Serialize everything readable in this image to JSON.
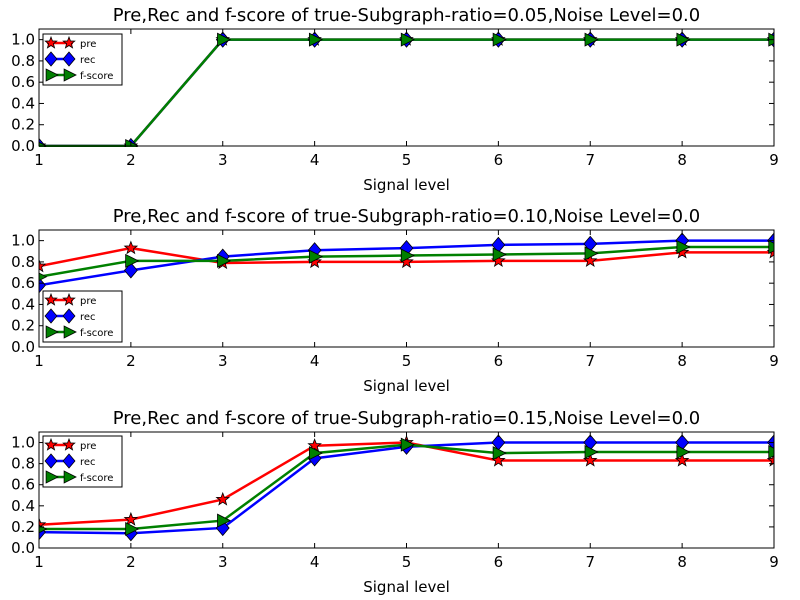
{
  "chart_data": [
    {
      "type": "line",
      "title": "Pre,Rec and f-score of true-Subgraph-ratio=0.05,Noise Level=0.0",
      "xlabel": "Signal level",
      "ylabel": "",
      "xlim": [
        1,
        9
      ],
      "ylim": [
        0,
        1.1
      ],
      "grid": false,
      "legend_position": "top-left",
      "x": [
        1,
        2,
        3,
        4,
        5,
        6,
        7,
        8,
        9
      ],
      "x_ticks": [
        "1",
        "2",
        "3",
        "4",
        "5",
        "6",
        "7",
        "8",
        "9"
      ],
      "y_ticks": [
        "0.0",
        "0.2",
        "0.4",
        "0.6",
        "0.8",
        "1.0"
      ],
      "series": [
        {
          "name": "pre",
          "color": "#ff0000",
          "marker": "star",
          "values": [
            0.0,
            0.0,
            1.0,
            1.0,
            1.0,
            1.0,
            1.0,
            1.0,
            1.0
          ]
        },
        {
          "name": "rec",
          "color": "#0000ff",
          "marker": "diamond",
          "values": [
            0.0,
            0.0,
            1.0,
            1.0,
            1.0,
            1.0,
            1.0,
            1.0,
            1.0
          ]
        },
        {
          "name": "f-score",
          "color": "#008000",
          "marker": "triangle-right",
          "values": [
            0.0,
            0.0,
            1.0,
            1.0,
            1.0,
            1.0,
            1.0,
            1.0,
            1.0
          ]
        }
      ]
    },
    {
      "type": "line",
      "title": "Pre,Rec and f-score of true-Subgraph-ratio=0.10,Noise Level=0.0",
      "xlabel": "Signal level",
      "ylabel": "",
      "xlim": [
        1,
        9
      ],
      "ylim": [
        0,
        1.1
      ],
      "grid": false,
      "legend_position": "bottom-left",
      "x": [
        1,
        2,
        3,
        4,
        5,
        6,
        7,
        8,
        9
      ],
      "x_ticks": [
        "1",
        "2",
        "3",
        "4",
        "5",
        "6",
        "7",
        "8",
        "9"
      ],
      "y_ticks": [
        "0.0",
        "0.2",
        "0.4",
        "0.6",
        "0.8",
        "1.0"
      ],
      "series": [
        {
          "name": "pre",
          "color": "#ff0000",
          "marker": "star",
          "values": [
            0.76,
            0.93,
            0.79,
            0.8,
            0.8,
            0.81,
            0.81,
            0.89,
            0.89
          ]
        },
        {
          "name": "rec",
          "color": "#0000ff",
          "marker": "diamond",
          "values": [
            0.58,
            0.72,
            0.85,
            0.91,
            0.93,
            0.96,
            0.97,
            1.0,
            1.0
          ]
        },
        {
          "name": "f-score",
          "color": "#008000",
          "marker": "triangle-right",
          "values": [
            0.66,
            0.81,
            0.81,
            0.85,
            0.86,
            0.87,
            0.88,
            0.94,
            0.94
          ]
        }
      ]
    },
    {
      "type": "line",
      "title": "Pre,Rec and f-score of true-Subgraph-ratio=0.15,Noise Level=0.0",
      "xlabel": "Signal level",
      "ylabel": "",
      "xlim": [
        1,
        9
      ],
      "ylim": [
        0,
        1.1
      ],
      "grid": false,
      "legend_position": "top-left",
      "x": [
        1,
        2,
        3,
        4,
        5,
        6,
        7,
        8,
        9
      ],
      "x_ticks": [
        "1",
        "2",
        "3",
        "4",
        "5",
        "6",
        "7",
        "8",
        "9"
      ],
      "y_ticks": [
        "0.0",
        "0.2",
        "0.4",
        "0.6",
        "0.8",
        "1.0"
      ],
      "series": [
        {
          "name": "pre",
          "color": "#ff0000",
          "marker": "star",
          "values": [
            0.22,
            0.27,
            0.46,
            0.97,
            1.0,
            0.83,
            0.83,
            0.83,
            0.83
          ]
        },
        {
          "name": "rec",
          "color": "#0000ff",
          "marker": "diamond",
          "values": [
            0.15,
            0.14,
            0.19,
            0.85,
            0.96,
            1.0,
            1.0,
            1.0,
            1.0
          ]
        },
        {
          "name": "f-score",
          "color": "#008000",
          "marker": "triangle-right",
          "values": [
            0.18,
            0.18,
            0.26,
            0.9,
            0.98,
            0.9,
            0.91,
            0.91,
            0.91
          ]
        }
      ]
    }
  ]
}
